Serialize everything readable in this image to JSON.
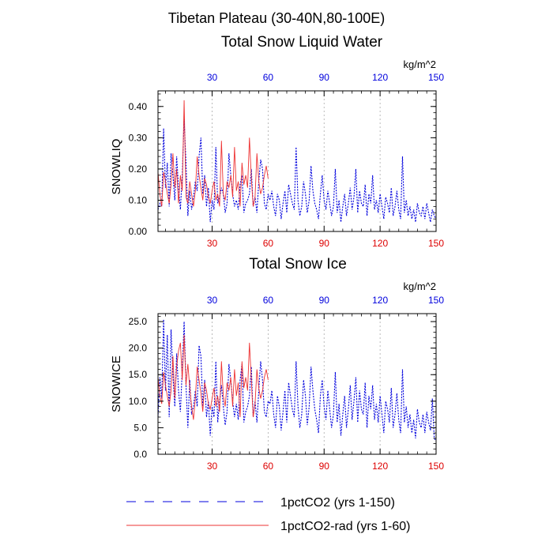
{
  "figure": {
    "supertitle": "Tibetan Plateau (30-40N,80-100E)"
  },
  "legend": {
    "items": [
      {
        "label": "1pctCO2 (yrs 1-150)",
        "color": "#0000dd",
        "dash": true
      },
      {
        "label": "1pctCO2-rad (yrs 1-60)",
        "color": "#ee3333",
        "dash": false
      }
    ]
  },
  "chart_data": [
    {
      "type": "line",
      "title": "Total Snow Liquid Water",
      "ylabel": "SNOWLIQ",
      "units": "kg/m^2",
      "xlim": [
        1,
        150
      ],
      "ylim": [
        0,
        0.45
      ],
      "xticks": [
        30,
        60,
        90,
        120,
        150
      ],
      "xtick_labels": [
        "30",
        "60",
        "90",
        "120",
        "150"
      ],
      "yticks": [
        0,
        0.1,
        0.2,
        0.3,
        0.4
      ],
      "ytick_labels": [
        "0.00",
        "0.10",
        "0.20",
        "0.30",
        "0.40"
      ],
      "grid": "vertical-dotted",
      "series": [
        {
          "name": "1pctCO2 (yrs 1-150)",
          "color": "#0000dd",
          "style": "dotted",
          "x_start": 1,
          "values": [
            0.07,
            0.09,
            0.08,
            0.33,
            0.14,
            0.22,
            0.08,
            0.25,
            0.18,
            0.1,
            0.24,
            0.14,
            0.07,
            0.18,
            0.36,
            0.22,
            0.05,
            0.13,
            0.07,
            0.11,
            0.16,
            0.13,
            0.24,
            0.3,
            0.12,
            0.18,
            0.08,
            0.14,
            0.03,
            0.1,
            0.07,
            0.27,
            0.09,
            0.11,
            0.14,
            0.12,
            0.06,
            0.09,
            0.25,
            0.18,
            0.12,
            0.08,
            0.1,
            0.07,
            0.15,
            0.18,
            0.06,
            0.09,
            0.1,
            0.12,
            0.2,
            0.08,
            0.11,
            0.06,
            0.16,
            0.23,
            0.2,
            0.09,
            0.07,
            0.12,
            0.1,
            0.13,
            0.08,
            0.05,
            0.12,
            0.1,
            0.04,
            0.09,
            0.13,
            0.06,
            0.15,
            0.12,
            0.09,
            0.07,
            0.27,
            0.1,
            0.05,
            0.08,
            0.16,
            0.12,
            0.06,
            0.1,
            0.21,
            0.13,
            0.09,
            0.07,
            0.04,
            0.12,
            0.18,
            0.1,
            0.07,
            0.13,
            0.09,
            0.05,
            0.08,
            0.2,
            0.06,
            0.1,
            0.03,
            0.08,
            0.12,
            0.05,
            0.09,
            0.14,
            0.07,
            0.11,
            0.2,
            0.06,
            0.13,
            0.09,
            0.08,
            0.15,
            0.05,
            0.12,
            0.09,
            0.18,
            0.07,
            0.1,
            0.06,
            0.12,
            0.08,
            0.04,
            0.11,
            0.09,
            0.06,
            0.14,
            0.05,
            0.08,
            0.13,
            0.07,
            0.04,
            0.24,
            0.06,
            0.1,
            0.05,
            0.08,
            0.04,
            0.07,
            0.03,
            0.09,
            0.06,
            0.05,
            0.08,
            0.04,
            0.09,
            0.06,
            0.03,
            0.07,
            0.05,
            0.04
          ]
        },
        {
          "name": "1pctCO2-rad (yrs 1-60)",
          "color": "#ee3333",
          "style": "solid",
          "x_start": 1,
          "values": [
            0.19,
            0.12,
            0.08,
            0.19,
            0.16,
            0.12,
            0.09,
            0.15,
            0.25,
            0.14,
            0.2,
            0.09,
            0.18,
            0.13,
            0.42,
            0.11,
            0.09,
            0.16,
            0.12,
            0.08,
            0.13,
            0.24,
            0.18,
            0.14,
            0.1,
            0.17,
            0.15,
            0.11,
            0.09,
            0.13,
            0.16,
            0.1,
            0.12,
            0.08,
            0.29,
            0.12,
            0.1,
            0.16,
            0.14,
            0.18,
            0.11,
            0.27,
            0.13,
            0.16,
            0.08,
            0.22,
            0.15,
            0.18,
            0.14,
            0.3,
            0.17,
            0.08,
            0.11,
            0.25,
            0.16,
            0.12,
            0.14,
            0.18,
            0.21,
            0.17
          ]
        }
      ]
    },
    {
      "type": "line",
      "title": "Total Snow Ice",
      "ylabel": "SNOWICE",
      "units": "kg/m^2",
      "xlim": [
        1,
        150
      ],
      "ylim": [
        0,
        26.5
      ],
      "xticks": [
        30,
        60,
        90,
        120,
        150
      ],
      "xtick_labels": [
        "30",
        "60",
        "90",
        "120",
        "150"
      ],
      "yticks": [
        0,
        5,
        10,
        15,
        20,
        25
      ],
      "ytick_labels": [
        "0.0",
        "5.0",
        "10.0",
        "15.0",
        "20.0",
        "25.0"
      ],
      "grid": "vertical-dotted",
      "series": [
        {
          "name": "1pctCO2 (yrs 1-150)",
          "color": "#0000dd",
          "style": "dotted",
          "x_start": 1,
          "values": [
            7.0,
            14.5,
            10.5,
            25.4,
            12.0,
            22.5,
            7.0,
            23.5,
            15.0,
            9.0,
            19.0,
            12.0,
            8.0,
            16.0,
            25.0,
            13.0,
            5.0,
            14.0,
            7.5,
            9.0,
            12.0,
            9.0,
            20.5,
            18.5,
            9.0,
            14.0,
            7.0,
            10.0,
            3.5,
            9.0,
            7.0,
            17.5,
            6.0,
            10.0,
            13.0,
            9.0,
            5.5,
            8.0,
            17.0,
            14.0,
            10.0,
            7.0,
            9.5,
            6.5,
            14.0,
            17.0,
            6.0,
            8.0,
            9.0,
            11.0,
            16.5,
            7.0,
            10.0,
            6.0,
            12.0,
            17.5,
            14.0,
            8.0,
            7.0,
            10.0,
            9.5,
            12.0,
            7.5,
            5.0,
            11.0,
            9.0,
            4.5,
            8.0,
            12.0,
            6.0,
            13.5,
            11.0,
            8.5,
            7.0,
            17.5,
            9.0,
            5.0,
            7.5,
            14.0,
            11.0,
            5.5,
            9.0,
            16.5,
            12.0,
            8.5,
            6.5,
            4.0,
            11.0,
            14.0,
            9.0,
            6.5,
            12.0,
            8.5,
            5.0,
            7.5,
            15.5,
            6.0,
            9.5,
            3.5,
            7.5,
            11.0,
            5.0,
            8.5,
            13.0,
            6.5,
            10.0,
            14.5,
            6.0,
            12.0,
            8.5,
            7.5,
            13.5,
            5.0,
            11.0,
            8.5,
            13.0,
            6.5,
            9.5,
            6.0,
            11.0,
            7.5,
            4.0,
            10.0,
            8.5,
            6.0,
            12.5,
            5.0,
            7.5,
            11.5,
            6.5,
            4.0,
            16.0,
            6.0,
            9.0,
            5.0,
            7.5,
            4.0,
            6.5,
            3.0,
            8.5,
            6.0,
            5.0,
            7.5,
            4.0,
            8.0,
            6.0,
            4.5,
            10.5,
            3.0,
            2.5
          ]
        },
        {
          "name": "1pctCO2-rad (yrs 1-60)",
          "color": "#ee3333",
          "style": "solid",
          "x_start": 1,
          "values": [
            14.5,
            11.0,
            9.5,
            15.5,
            13.0,
            11.0,
            9.0,
            12.0,
            18.5,
            10.5,
            16.5,
            19.5,
            21.0,
            14.0,
            22.5,
            13.0,
            17.0,
            12.5,
            9.0,
            6.5,
            10.5,
            16.5,
            14.0,
            11.5,
            8.0,
            13.5,
            12.0,
            9.5,
            8.5,
            10.5,
            12.5,
            9.0,
            11.0,
            8.0,
            17.5,
            11.0,
            9.0,
            13.5,
            12.0,
            14.5,
            9.0,
            16.0,
            11.0,
            13.5,
            7.0,
            17.5,
            12.5,
            14.5,
            12.0,
            21.0,
            14.0,
            7.0,
            9.5,
            16.0,
            12.5,
            10.5,
            12.0,
            14.5,
            16.0,
            14.0
          ]
        }
      ]
    }
  ]
}
